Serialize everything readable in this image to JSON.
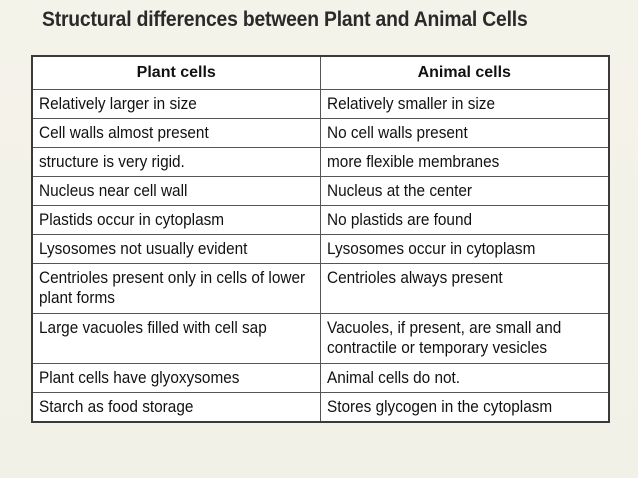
{
  "title": "Structural differences between Plant and Animal Cells",
  "table": {
    "headers": [
      "Plant cells",
      "Animal cells"
    ],
    "rows": [
      [
        "Relatively larger in size",
        "Relatively smaller in size"
      ],
      [
        "Cell walls almost present",
        "No cell walls present"
      ],
      [
        "structure is very rigid.",
        "more flexible membranes"
      ],
      [
        "Nucleus near cell wall",
        "Nucleus at the center"
      ],
      [
        "Plastids occur in cytoplasm",
        "No plastids are found"
      ],
      [
        "Lysosomes not usually evident",
        "Lysosomes occur in cytoplasm"
      ],
      [
        "Centrioles present only in cells of lower plant forms",
        "Centrioles always present"
      ],
      [
        "Large vacuoles filled with cell sap",
        "Vacuoles, if present, are small and contractile or temporary vesicles"
      ],
      [
        "Plant cells have glyoxysomes",
        "Animal cells do not."
      ],
      [
        "Starch as food storage",
        "Stores glycogen in the cytoplasm"
      ]
    ]
  }
}
